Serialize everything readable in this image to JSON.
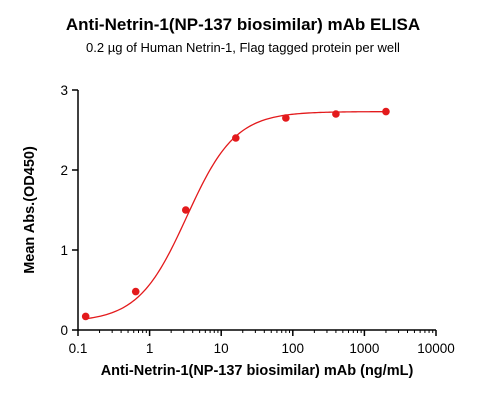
{
  "chart_data": {
    "type": "line",
    "title": "Anti-Netrin-1(NP-137 biosimilar) mAb ELISA",
    "subtitle": "0.2 µg of Human Netrin-1, Flag tagged protein per well",
    "xlabel": "Anti-Netrin-1(NP-137 biosimilar) mAb (ng/mL)",
    "ylabel": "Mean Abs.(OD450)",
    "x_scale": "log",
    "xlim": [
      0.1,
      10000
    ],
    "ylim": [
      0,
      3
    ],
    "x_ticks": [
      "0.1",
      "1",
      "10",
      "100",
      "1000",
      "10000"
    ],
    "y_ticks": [
      "0",
      "1",
      "2",
      "3"
    ],
    "grid": false,
    "series": [
      {
        "x": [
          0.128,
          0.64,
          3.2,
          16,
          80,
          400,
          2000
        ],
        "y": [
          0.17,
          0.48,
          1.5,
          2.4,
          2.65,
          2.7,
          2.73
        ],
        "color": "#e31a1c",
        "marker": "circle",
        "fit_curve": true
      }
    ]
  }
}
